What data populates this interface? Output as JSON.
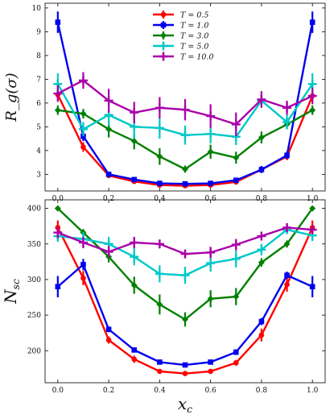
{
  "chart_data": [
    {
      "type": "line",
      "ylabel": "R_g(σ)",
      "xlabel": "",
      "xlim": [
        -0.05,
        1.05
      ],
      "ylim": [
        2.3,
        10.2
      ],
      "xticks": [
        "0.0",
        "0.2",
        "0.4",
        "0.6",
        "0.8",
        "1.0"
      ],
      "yticks": [
        "3",
        "4",
        "5",
        "6",
        "7",
        "8",
        "9",
        "10"
      ],
      "legend": "upper-center",
      "x": [
        0.0,
        0.1,
        0.2,
        0.3,
        0.4,
        0.5,
        0.6,
        0.7,
        0.8,
        0.9,
        1.0
      ],
      "series": [
        {
          "name": "T = 0.5",
          "color": "#ff0000",
          "marker": "circle",
          "values": [
            6.35,
            4.15,
            2.95,
            2.7,
            2.55,
            2.52,
            2.55,
            2.68,
            3.2,
            3.75,
            6.3
          ],
          "err": [
            0.25,
            0.2,
            0.08,
            0.08,
            0.06,
            0.06,
            0.06,
            0.08,
            0.15,
            0.15,
            0.25
          ]
        },
        {
          "name": "T = 1.0",
          "color": "#0000ee",
          "marker": "square",
          "values": [
            9.4,
            4.6,
            3.0,
            2.78,
            2.62,
            2.6,
            2.62,
            2.75,
            3.2,
            3.8,
            9.4
          ],
          "err": [
            0.45,
            0.2,
            0.08,
            0.08,
            0.06,
            0.06,
            0.06,
            0.08,
            0.15,
            0.15,
            0.45
          ]
        },
        {
          "name": "T = 3.0",
          "color": "#008000",
          "marker": "diamond",
          "values": [
            5.7,
            5.55,
            4.9,
            4.4,
            3.75,
            3.22,
            3.95,
            3.7,
            4.55,
            5.1,
            5.7
          ],
          "err": [
            0.2,
            0.2,
            0.35,
            0.35,
            0.35,
            0.15,
            0.3,
            0.25,
            0.25,
            0.2,
            0.2
          ]
        },
        {
          "name": "T = 5.0",
          "color": "#00c8c8",
          "marker": "plus",
          "values": [
            6.8,
            4.9,
            5.5,
            5.0,
            4.95,
            4.65,
            4.7,
            4.58,
            6.1,
            5.2,
            6.8
          ],
          "err": [
            0.45,
            0.3,
            0.45,
            0.5,
            0.45,
            0.4,
            0.4,
            0.35,
            0.3,
            0.3,
            0.45
          ]
        },
        {
          "name": "T = 10.0",
          "color": "#aa00aa",
          "marker": "plus",
          "values": [
            6.4,
            6.95,
            6.1,
            5.6,
            5.8,
            5.72,
            5.45,
            5.1,
            6.15,
            5.8,
            6.3
          ],
          "err": [
            0.35,
            0.35,
            0.5,
            0.45,
            0.45,
            0.45,
            0.5,
            0.5,
            0.35,
            0.3,
            0.35
          ]
        }
      ]
    },
    {
      "type": "line",
      "ylabel": "N_sc",
      "xlabel": "x_c",
      "xlim": [
        -0.05,
        1.05
      ],
      "ylim": [
        155,
        412
      ],
      "xticks": [
        "0.0",
        "0.2",
        "0.4",
        "0.6",
        "0.8",
        "1.0"
      ],
      "yticks": [
        "200",
        "250",
        "300",
        "350",
        "400"
      ],
      "x": [
        0.0,
        0.1,
        0.2,
        0.3,
        0.4,
        0.5,
        0.6,
        0.7,
        0.8,
        0.9,
        1.0
      ],
      "series": [
        {
          "name": "T = 0.5",
          "color": "#ff0000",
          "marker": "circle",
          "values": [
            373,
            302,
            215,
            188,
            171,
            168,
            171,
            183,
            222,
            293,
            373
          ],
          "err": [
            10,
            10,
            5,
            5,
            3,
            3,
            3,
            4,
            9,
            10,
            10
          ]
        },
        {
          "name": "T = 1.0",
          "color": "#0000ee",
          "marker": "square",
          "values": [
            290,
            321,
            230,
            201,
            184,
            180,
            184,
            198,
            241,
            306,
            290
          ],
          "err": [
            15,
            8,
            4,
            3,
            3,
            3,
            3,
            4,
            5,
            5,
            15
          ]
        },
        {
          "name": "T = 3.0",
          "color": "#008000",
          "marker": "diamond",
          "values": [
            400,
            366,
            332,
            292,
            265,
            244,
            273,
            276,
            324,
            350,
            400
          ],
          "err": [
            3,
            5,
            8,
            12,
            14,
            10,
            12,
            12,
            6,
            5,
            3
          ]
        },
        {
          "name": "T = 5.0",
          "color": "#00c8c8",
          "marker": "plus",
          "values": [
            361,
            357,
            350,
            332,
            308,
            306,
            323,
            329,
            342,
            370,
            362
          ],
          "err": [
            8,
            10,
            10,
            12,
            12,
            12,
            12,
            12,
            8,
            6,
            8
          ]
        },
        {
          "name": "T = 10.0",
          "color": "#aa00aa",
          "marker": "plus",
          "values": [
            366,
            352,
            339,
            352,
            350,
            336,
            338,
            349,
            361,
            373,
            370
          ],
          "err": [
            8,
            8,
            8,
            8,
            6,
            6,
            8,
            8,
            6,
            5,
            6
          ]
        }
      ]
    }
  ]
}
